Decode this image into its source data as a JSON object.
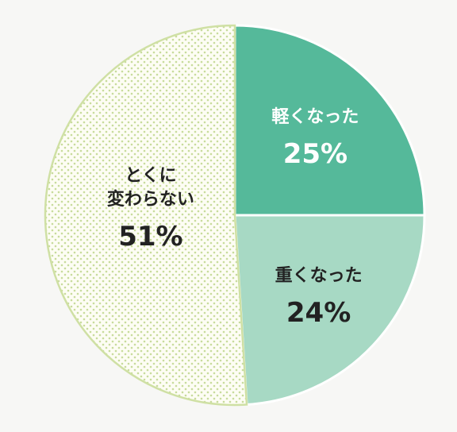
{
  "chart_data": {
    "type": "pie",
    "categories": [
      "軽くなった",
      "重くなった",
      "とくに\n変わらない"
    ],
    "values": [
      25,
      24,
      51
    ],
    "value_labels": [
      "25%",
      "24%",
      "51%"
    ],
    "colors": [
      "#55b99a",
      "#a7d9c4",
      "#fdfdf4"
    ],
    "patterns": [
      null,
      null,
      "dots"
    ],
    "label_colors": [
      "#ffffff",
      "#222222",
      "#222222"
    ]
  }
}
